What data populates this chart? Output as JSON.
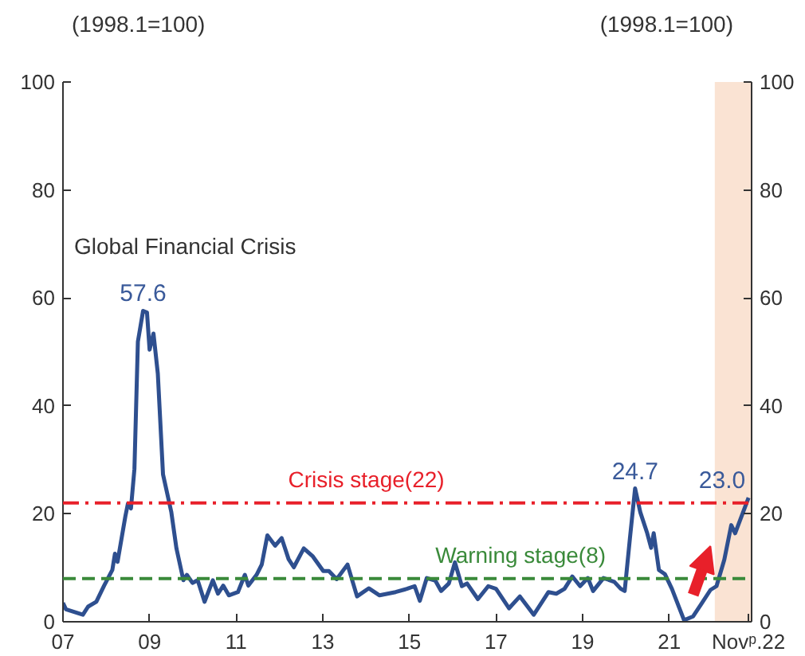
{
  "chart_data": {
    "type": "line",
    "ylabel": "(1998.1=100)",
    "y2label": "(1998.1=100)",
    "x": [
      2007.0,
      2007.07,
      2007.46,
      2007.58,
      2007.77,
      2007.95,
      2008.14,
      2008.2,
      2008.26,
      2008.44,
      2008.5,
      2008.57,
      2008.65,
      2008.73,
      2008.85,
      2008.94,
      2009.0,
      2009.09,
      2009.19,
      2009.31,
      2009.5,
      2009.62,
      2009.78,
      2009.86,
      2009.99,
      2010.11,
      2010.27,
      2010.46,
      2010.58,
      2010.7,
      2010.83,
      2011.04,
      2011.2,
      2011.28,
      2011.47,
      2011.59,
      2011.72,
      2011.9,
      2012.05,
      2012.21,
      2012.33,
      2012.56,
      2012.77,
      2013.01,
      2013.14,
      2013.32,
      2013.57,
      2013.79,
      2014.06,
      2014.31,
      2014.68,
      2014.94,
      2015.12,
      2015.24,
      2015.4,
      2015.6,
      2015.73,
      2015.91,
      2016.05,
      2016.21,
      2016.33,
      2016.58,
      2016.82,
      2017.0,
      2017.3,
      2017.55,
      2017.87,
      2018.21,
      2018.39,
      2018.58,
      2018.76,
      2018.94,
      2019.12,
      2019.24,
      2019.48,
      2019.73,
      2019.88,
      2019.97,
      2020.09,
      2020.21,
      2020.33,
      2020.49,
      2020.58,
      2020.64,
      2020.76,
      2020.9,
      2021.06,
      2021.34,
      2021.55,
      2021.73,
      2021.95,
      2022.09,
      2022.27,
      2022.43,
      2022.52,
      2022.83
    ],
    "series": [
      {
        "color": "#2e4f8f",
        "values": [
          3.5,
          2.3,
          1.3,
          2.8,
          3.7,
          6.7,
          9.6,
          12.6,
          11.1,
          19.5,
          21.9,
          21.0,
          28.3,
          51.9,
          57.6,
          57.3,
          50.4,
          53.4,
          46.0,
          27.3,
          20.4,
          13.6,
          7.7,
          8.7,
          7.2,
          7.7,
          3.7,
          7.7,
          5.2,
          6.7,
          4.9,
          5.5,
          8.7,
          6.7,
          8.7,
          10.6,
          16.0,
          14.1,
          15.5,
          11.6,
          10.1,
          13.6,
          12.1,
          9.4,
          9.4,
          7.9,
          10.6,
          4.7,
          6.2,
          4.9,
          5.5,
          6.1,
          6.6,
          3.9,
          8.1,
          7.6,
          5.7,
          7.1,
          11.0,
          6.6,
          7.1,
          4.2,
          6.6,
          6.1,
          2.5,
          4.7,
          1.3,
          5.5,
          5.2,
          6.1,
          8.4,
          6.6,
          8.1,
          5.7,
          8.1,
          7.4,
          6.1,
          5.7,
          15.4,
          24.7,
          20.3,
          16.4,
          13.7,
          16.4,
          9.6,
          8.8,
          6.1,
          0.3,
          1.0,
          3.2,
          5.9,
          6.6,
          11.5,
          17.9,
          16.4,
          23.0
        ]
      }
    ],
    "xlim": [
      2007.0,
      2022.9
    ],
    "xticks": [
      {
        "value": 2007,
        "label": "07"
      },
      {
        "value": 2009,
        "label": "09"
      },
      {
        "value": 2011,
        "label": "11"
      },
      {
        "value": 2013,
        "label": "13"
      },
      {
        "value": 2015,
        "label": "15"
      },
      {
        "value": 2017,
        "label": "17"
      },
      {
        "value": 2019,
        "label": "19"
      },
      {
        "value": 2021,
        "label": "21"
      },
      {
        "value": 2022.83,
        "label": "Novᵖ.22"
      }
    ],
    "ylim": [
      0,
      100
    ],
    "yticks": [
      0,
      20,
      40,
      60,
      80,
      100
    ],
    "y2lim": [
      0,
      100
    ],
    "y2ticks": [
      0,
      20,
      40,
      60,
      80,
      100
    ],
    "ref_lines": [
      {
        "axis": "y",
        "value": 22,
        "label": "Crisis stage(22)",
        "color": "#e8202a",
        "line_style": "dashdot"
      },
      {
        "axis": "y",
        "value": 8,
        "label": "Warning stage(8)",
        "color": "#3a8a3a",
        "line_style": "dashed"
      }
    ],
    "bands": [
      {
        "axis": "x",
        "from": 2022.05,
        "to": 2022.9,
        "color": "#fae3d3"
      }
    ],
    "annotations": [
      "Global Financial Crisis",
      {
        "text": "57.6",
        "x": 2008.85,
        "y": 57.6
      },
      {
        "text": "24.7",
        "x": 2020.21,
        "y": 24.7
      },
      {
        "text": "23.0",
        "x": 2022.83,
        "y": 23.0
      }
    ],
    "grid": false
  }
}
